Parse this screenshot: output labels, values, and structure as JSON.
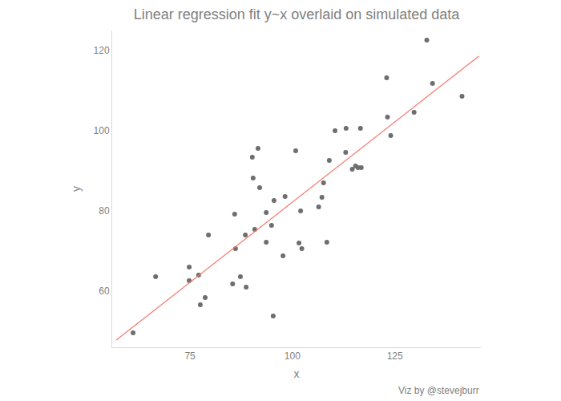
{
  "chart_data": {
    "type": "scatter",
    "title": "Linear regression fit y~x overlaid on simulated data",
    "x_label": "x",
    "y_label": "y",
    "caption": "Viz by @stevejburr",
    "xlim": [
      56,
      146
    ],
    "ylim": [
      46,
      125
    ],
    "xticks": [
      75,
      100,
      125
    ],
    "yticks": [
      60,
      80,
      100,
      120
    ],
    "grid": false,
    "series": [
      {
        "type": "scatter",
        "color": "#6e6e6e",
        "marker": "circle",
        "x": [
          61.1,
          66.6,
          74.8,
          74.8,
          77.1,
          77.5,
          78.7,
          79.5,
          85.4,
          85.9,
          86.1,
          87.3,
          88.5,
          88.7,
          90.2,
          90.4,
          90.8,
          91.6,
          92.0,
          93.6,
          93.6,
          94.9,
          95.3,
          95.5,
          97.7,
          98.2,
          100.8,
          101.6,
          102.0,
          102.3,
          106.4,
          107.2,
          107.6,
          108.4,
          109.0,
          110.4,
          113.0,
          113.1,
          114.6,
          115.4,
          116.0,
          116.6,
          116.8,
          123.0,
          123.2,
          124.0,
          129.7,
          132.8,
          134.2,
          141.4
        ],
        "values": [
          49.6,
          63.6,
          66.0,
          62.6,
          64.0,
          56.6,
          58.4,
          74.0,
          61.8,
          79.2,
          70.6,
          63.6,
          74.0,
          61.0,
          93.4,
          88.2,
          75.4,
          95.6,
          85.8,
          79.6,
          72.2,
          76.4,
          53.8,
          82.6,
          68.8,
          83.6,
          95.0,
          72.0,
          80.0,
          70.6,
          81.0,
          83.4,
          87.0,
          72.2,
          92.6,
          100.0,
          94.6,
          100.6,
          90.4,
          91.2,
          90.8,
          100.6,
          90.8,
          113.2,
          103.4,
          98.8,
          104.6,
          122.6,
          111.8,
          108.6
        ]
      },
      {
        "type": "line",
        "color": "#f8766d",
        "line_style": "solid",
        "x": [
          57,
          145.5
        ],
        "values": [
          47.8,
          118.6
        ]
      }
    ]
  }
}
